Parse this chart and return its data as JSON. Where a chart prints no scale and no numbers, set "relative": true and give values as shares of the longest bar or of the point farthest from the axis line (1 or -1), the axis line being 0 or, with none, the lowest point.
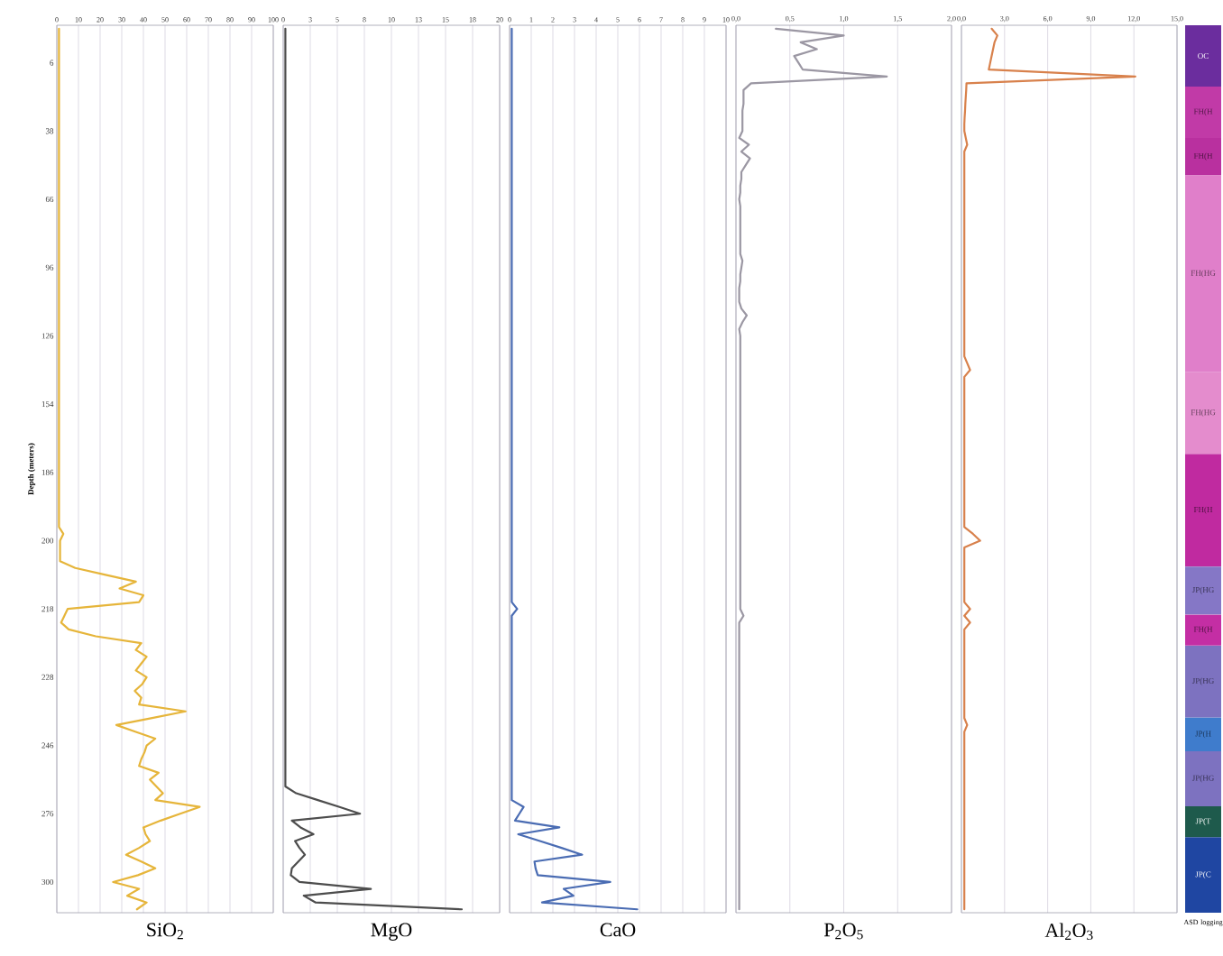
{
  "chart_data": [
    {
      "type": "line",
      "orientation": "horizontal",
      "xlabel": "SiO$_{2}$",
      "ylabel": "Depth (meters)",
      "xlim": [
        0,
        100
      ],
      "xticks": [
        0,
        10,
        20,
        30,
        40,
        50,
        60,
        70,
        80,
        90,
        100
      ],
      "categories": [
        null,
        null,
        null,
        null,
        null,
        "6",
        null,
        null,
        null,
        null,
        null,
        null,
        null,
        null,
        null,
        "38",
        null,
        null,
        null,
        null,
        null,
        null,
        null,
        null,
        null,
        "66",
        null,
        null,
        null,
        null,
        null,
        null,
        null,
        null,
        null,
        "96",
        null,
        null,
        null,
        null,
        null,
        null,
        null,
        null,
        null,
        "126",
        null,
        null,
        null,
        null,
        null,
        null,
        null,
        null,
        null,
        "154",
        null,
        null,
        null,
        null,
        null,
        null,
        null,
        null,
        null,
        "186",
        null,
        null,
        null,
        null,
        null,
        null,
        null,
        null,
        null,
        "200",
        null,
        null,
        null,
        null,
        null,
        null,
        null,
        null,
        null,
        "218",
        null,
        null,
        null,
        null,
        null,
        null,
        null,
        null,
        null,
        "228",
        null,
        null,
        null,
        null,
        null,
        null,
        null,
        null,
        null,
        "246",
        null,
        null,
        null,
        null,
        null,
        null,
        null,
        null,
        null,
        "276",
        null,
        null,
        null,
        null,
        null,
        null,
        null,
        null,
        null,
        "300",
        null,
        null,
        null,
        null
      ],
      "grid": "x",
      "series": [
        {
          "color": "#e6b53a",
          "values": [
            1,
            1,
            1,
            1,
            1,
            1,
            1,
            1,
            1,
            1,
            1,
            1,
            1,
            1,
            1,
            1,
            1,
            1,
            1,
            1,
            1,
            1,
            1,
            1,
            1,
            1,
            1,
            1,
            1,
            1,
            1,
            1,
            1,
            1,
            1,
            1,
            1,
            1,
            1,
            1,
            1,
            1,
            1,
            1,
            1,
            1,
            1,
            1,
            1,
            1,
            1,
            1,
            1,
            1,
            1,
            1,
            1,
            1,
            1,
            1,
            1,
            1,
            1,
            1,
            1,
            1,
            1,
            1,
            1,
            1,
            1,
            1,
            1,
            1,
            3,
            1.5,
            1.5,
            1.5,
            1.5,
            8.5,
            22.5,
            36.5,
            29,
            40,
            38,
            5,
            3.5,
            2,
            5.5,
            18,
            39,
            36.5,
            41.5,
            39,
            36.5,
            41.5,
            39.5,
            36,
            39,
            38,
            59.5,
            43.5,
            27.5,
            36.5,
            45.5,
            41.5,
            40.5,
            39,
            38,
            47,
            43,
            46,
            49,
            45.5,
            66,
            57,
            48,
            40,
            41,
            43,
            38,
            32,
            39,
            45.5,
            37.5,
            26,
            38,
            32.5,
            41.5,
            37
          ]
        }
      ]
    },
    {
      "type": "line",
      "orientation": "horizontal",
      "xlabel": "MgO",
      "xlim": [
        0,
        20
      ],
      "xticks": [
        0,
        {
          "value": 2.5,
          "label": "3"
        },
        5,
        {
          "value": 7.5,
          "label": "8"
        },
        10,
        {
          "value": 12.5,
          "label": "13"
        },
        15,
        {
          "value": 17.5,
          "label": "18"
        },
        20
      ],
      "tick_labels": "x",
      "grid": "x",
      "categories": [
        null,
        null,
        null,
        null,
        null,
        "6",
        null,
        null,
        null,
        null,
        null,
        null,
        null,
        null,
        null,
        "38",
        null,
        null,
        null,
        null,
        null,
        null,
        null,
        null,
        null,
        "66",
        null,
        null,
        null,
        null,
        null,
        null,
        null,
        null,
        null,
        "96",
        null,
        null,
        null,
        null,
        null,
        null,
        null,
        null,
        null,
        "126",
        null,
        null,
        null,
        null,
        null,
        null,
        null,
        null,
        null,
        "154",
        null,
        null,
        null,
        null,
        null,
        null,
        null,
        null,
        null,
        "186",
        null,
        null,
        null,
        null,
        null,
        null,
        null,
        null,
        null,
        "200",
        null,
        null,
        null,
        null,
        null,
        null,
        null,
        null,
        null,
        "218",
        null,
        null,
        null,
        null,
        null,
        null,
        null,
        null,
        null,
        "228",
        null,
        null,
        null,
        null,
        null,
        null,
        null,
        null,
        null,
        "246",
        null,
        null,
        null,
        null,
        null,
        null,
        null,
        null,
        null,
        "276",
        null,
        null,
        null,
        null,
        null,
        null,
        null,
        null,
        null,
        "300",
        null,
        null,
        null,
        null
      ],
      "series": [
        {
          "color": "#4d4d4d",
          "values": [
            0.2,
            0.2,
            0.2,
            0.2,
            0.2,
            0.2,
            0.2,
            0.2,
            0.2,
            0.2,
            0.2,
            0.2,
            0.2,
            0.2,
            0.2,
            0.2,
            0.2,
            0.2,
            0.2,
            0.2,
            0.2,
            0.2,
            0.2,
            0.2,
            0.2,
            0.2,
            0.2,
            0.2,
            0.2,
            0.2,
            0.2,
            0.2,
            0.2,
            0.2,
            0.2,
            0.2,
            0.2,
            0.2,
            0.2,
            0.2,
            0.2,
            0.2,
            0.2,
            0.2,
            0.2,
            0.2,
            0.2,
            0.2,
            0.2,
            0.2,
            0.2,
            0.2,
            0.2,
            0.2,
            0.2,
            0.2,
            0.2,
            0.2,
            0.2,
            0.2,
            0.2,
            0.2,
            0.2,
            0.2,
            0.2,
            0.2,
            0.2,
            0.2,
            0.2,
            0.2,
            0.2,
            0.2,
            0.2,
            0.2,
            0.2,
            0.2,
            0.2,
            0.2,
            0.2,
            0.2,
            0.2,
            0.2,
            0.2,
            0.2,
            0.2,
            0.2,
            0.2,
            0.2,
            0.2,
            0.2,
            0.2,
            0.2,
            0.2,
            0.2,
            0.2,
            0.2,
            0.2,
            0.2,
            0.2,
            0.2,
            0.2,
            0.2,
            0.2,
            0.2,
            0.2,
            0.2,
            0.2,
            0.2,
            0.2,
            0.2,
            0.2,
            0.2,
            1.2,
            3.2,
            5.2,
            7.1,
            0.8,
            1.6,
            2.8,
            1.1,
            1.5,
            2,
            1.4,
            0.8,
            0.7,
            1.5,
            8.1,
            1.9,
            3,
            16.5
          ]
        }
      ]
    },
    {
      "type": "line",
      "orientation": "horizontal",
      "xlabel": "CaO",
      "xlim": [
        0,
        10
      ],
      "xticks": [
        0,
        1,
        2,
        3,
        4,
        5,
        6,
        7,
        8,
        9,
        10
      ],
      "tick_labels": "x",
      "grid": "x",
      "categories": [
        null,
        null,
        null,
        null,
        null,
        "6",
        null,
        null,
        null,
        null,
        null,
        null,
        null,
        null,
        null,
        "38",
        null,
        null,
        null,
        null,
        null,
        null,
        null,
        null,
        null,
        "66",
        null,
        null,
        null,
        null,
        null,
        null,
        null,
        null,
        null,
        "96",
        null,
        null,
        null,
        null,
        null,
        null,
        null,
        null,
        null,
        "126",
        null,
        null,
        null,
        null,
        null,
        null,
        null,
        null,
        null,
        "154",
        null,
        null,
        null,
        null,
        null,
        null,
        null,
        null,
        null,
        "186",
        null,
        null,
        null,
        null,
        null,
        null,
        null,
        null,
        null,
        "200",
        null,
        null,
        null,
        null,
        null,
        null,
        null,
        null,
        null,
        "218",
        null,
        null,
        null,
        null,
        null,
        null,
        null,
        null,
        null,
        "228",
        null,
        null,
        null,
        null,
        null,
        null,
        null,
        null,
        null,
        "246",
        null,
        null,
        null,
        null,
        null,
        null,
        null,
        null,
        null,
        "276",
        null,
        null,
        null,
        null,
        null,
        null,
        null,
        null,
        null,
        "300",
        null,
        null,
        null,
        null
      ],
      "series": [
        {
          "color": "#4a6cb3",
          "values": [
            0.1,
            0.1,
            0.1,
            0.1,
            0.1,
            0.1,
            0.1,
            0.1,
            0.1,
            0.1,
            0.1,
            0.1,
            0.1,
            0.1,
            0.1,
            0.1,
            0.1,
            0.1,
            0.1,
            0.1,
            0.1,
            0.1,
            0.1,
            0.1,
            0.1,
            0.1,
            0.1,
            0.1,
            0.1,
            0.1,
            0.1,
            0.1,
            0.1,
            0.1,
            0.1,
            0.1,
            0.1,
            0.1,
            0.1,
            0.1,
            0.1,
            0.1,
            0.1,
            0.1,
            0.1,
            0.1,
            0.1,
            0.1,
            0.1,
            0.1,
            0.1,
            0.1,
            0.1,
            0.1,
            0.1,
            0.1,
            0.1,
            0.1,
            0.1,
            0.1,
            0.1,
            0.1,
            0.1,
            0.1,
            0.1,
            0.1,
            0.1,
            0.1,
            0.1,
            0.1,
            0.1,
            0.1,
            0.1,
            0.1,
            0.1,
            0.1,
            0.1,
            0.1,
            0.1,
            0.1,
            0.1,
            0.1,
            0.1,
            0.1,
            0.1,
            0.35,
            0.1,
            0.1,
            0.1,
            0.1,
            0.1,
            0.1,
            0.1,
            0.1,
            0.1,
            0.1,
            0.1,
            0.1,
            0.1,
            0.1,
            0.1,
            0.1,
            0.1,
            0.1,
            0.1,
            0.1,
            0.1,
            0.1,
            0.1,
            0.1,
            0.1,
            0.1,
            0.1,
            0.1,
            0.65,
            0.45,
            0.25,
            2.3,
            0.4,
            1.4,
            2.4,
            3.35,
            1.15,
            1.2,
            1.3,
            4.65,
            2.5,
            2.95,
            1.5,
            5.9
          ]
        }
      ]
    },
    {
      "type": "line",
      "orientation": "horizontal",
      "xlabel": "P$_{2}$O$_{5}$",
      "xlim": [
        0,
        2
      ],
      "xticks": [
        {
          "value": 0,
          "label": "0,0"
        },
        {
          "value": 0.5,
          "label": "0,5"
        },
        {
          "value": 1,
          "label": "1,0"
        },
        {
          "value": 1.5,
          "label": "1,5"
        },
        {
          "value": 2,
          "label": "2,0"
        }
      ],
      "tick_labels": "x",
      "grid": "x",
      "categories": [
        null,
        null,
        null,
        null,
        null,
        "6",
        null,
        null,
        null,
        null,
        null,
        null,
        null,
        null,
        null,
        "38",
        null,
        null,
        null,
        null,
        null,
        null,
        null,
        null,
        null,
        "66",
        null,
        null,
        null,
        null,
        null,
        null,
        null,
        null,
        null,
        "96",
        null,
        null,
        null,
        null,
        null,
        null,
        null,
        null,
        null,
        "126",
        null,
        null,
        null,
        null,
        null,
        null,
        null,
        null,
        null,
        "154",
        null,
        null,
        null,
        null,
        null,
        null,
        null,
        null,
        null,
        "186",
        null,
        null,
        null,
        null,
        null,
        null,
        null,
        null,
        null,
        "200",
        null,
        null,
        null,
        null,
        null,
        null,
        null,
        null,
        null,
        "218",
        null,
        null,
        null,
        null,
        null,
        null,
        null,
        null,
        null,
        "228",
        null,
        null,
        null,
        null,
        null,
        null,
        null,
        null,
        null,
        "246",
        null,
        null,
        null,
        null,
        null,
        null,
        null,
        null,
        null,
        "276",
        null,
        null,
        null,
        null,
        null,
        null,
        null,
        null,
        null,
        "300",
        null,
        null,
        null,
        null
      ],
      "series": [
        {
          "color": "#9b97a3",
          "values": [
            0.37,
            1.0,
            0.6,
            0.75,
            0.54,
            0.58,
            0.62,
            1.4,
            0.14,
            0.07,
            0.07,
            0.07,
            0.06,
            0.06,
            0.06,
            0.06,
            0.03,
            0.12,
            0.05,
            0.13,
            0.09,
            0.05,
            0.05,
            0.04,
            0.04,
            0.03,
            0.04,
            0.04,
            0.04,
            0.04,
            0.04,
            0.04,
            0.04,
            0.04,
            0.06,
            0.05,
            0.04,
            0.04,
            0.03,
            0.03,
            0.03,
            0.05,
            0.1,
            0.06,
            0.03,
            0.04,
            0.04,
            0.04,
            0.04,
            0.04,
            0.04,
            0.04,
            0.04,
            0.04,
            0.04,
            0.04,
            0.04,
            0.04,
            0.04,
            0.04,
            0.04,
            0.04,
            0.04,
            0.04,
            0.04,
            0.04,
            0.04,
            0.04,
            0.04,
            0.04,
            0.04,
            0.04,
            0.04,
            0.04,
            0.04,
            0.04,
            0.04,
            0.04,
            0.04,
            0.04,
            0.04,
            0.04,
            0.04,
            0.04,
            0.04,
            0.04,
            0.07,
            0.03,
            0.03,
            0.03,
            0.03,
            0.03,
            0.03,
            0.03,
            0.03,
            0.03,
            0.03,
            0.03,
            0.03,
            0.03,
            0.03,
            0.03,
            0.03,
            0.03,
            0.03,
            0.03,
            0.03,
            0.03,
            0.03,
            0.03,
            0.03,
            0.03,
            0.03,
            0.03,
            0.03,
            0.03,
            0.03,
            0.03,
            0.03,
            0.03,
            0.03,
            0.03,
            0.03,
            0.03,
            0.03,
            0.03,
            0.03,
            0.03,
            0.03,
            0.03
          ]
        }
      ]
    },
    {
      "type": "line",
      "orientation": "horizontal",
      "xlabel": "Al$_{2}$O$_{3}$",
      "xlim": [
        0,
        15
      ],
      "xticks": [
        {
          "value": 0,
          "label": "0,0"
        },
        {
          "value": 3,
          "label": "3,0"
        },
        {
          "value": 6,
          "label": "6,0"
        },
        {
          "value": 9,
          "label": "9,0"
        },
        {
          "value": 12,
          "label": "12,0"
        },
        {
          "value": 15,
          "label": "15,0"
        }
      ],
      "tick_labels": "x",
      "grid": "x",
      "categories": [
        null,
        null,
        null,
        null,
        null,
        "6",
        null,
        null,
        null,
        null,
        null,
        null,
        null,
        null,
        null,
        "38",
        null,
        null,
        null,
        null,
        null,
        null,
        null,
        null,
        null,
        "66",
        null,
        null,
        null,
        null,
        null,
        null,
        null,
        null,
        null,
        "96",
        null,
        null,
        null,
        null,
        null,
        null,
        null,
        null,
        null,
        "126",
        null,
        null,
        null,
        null,
        null,
        null,
        null,
        null,
        null,
        "154",
        null,
        null,
        null,
        null,
        null,
        null,
        null,
        null,
        null,
        "186",
        null,
        null,
        null,
        null,
        null,
        null,
        null,
        null,
        null,
        "200",
        null,
        null,
        null,
        null,
        null,
        null,
        null,
        null,
        null,
        "218",
        null,
        null,
        null,
        null,
        null,
        null,
        null,
        null,
        null,
        "228",
        null,
        null,
        null,
        null,
        null,
        null,
        null,
        null,
        null,
        "246",
        null,
        null,
        null,
        null,
        null,
        null,
        null,
        null,
        null,
        "276",
        null,
        null,
        null,
        null,
        null,
        null,
        null,
        null,
        null,
        "300",
        null,
        null,
        null,
        null
      ],
      "series": [
        {
          "color": "#d8814c",
          "values": [
            2.1,
            2.5,
            2.3,
            2.2,
            2.1,
            2.0,
            1.9,
            12.1,
            0.35,
            0.33,
            0.3,
            0.27,
            0.25,
            0.22,
            0.2,
            0.2,
            0.3,
            0.4,
            0.2,
            0.2,
            0.2,
            0.2,
            0.2,
            0.2,
            0.2,
            0.2,
            0.2,
            0.2,
            0.2,
            0.2,
            0.2,
            0.2,
            0.2,
            0.2,
            0.2,
            0.2,
            0.2,
            0.2,
            0.2,
            0.2,
            0.2,
            0.2,
            0.2,
            0.2,
            0.2,
            0.2,
            0.2,
            0.2,
            0.2,
            0.4,
            0.6,
            0.2,
            0.2,
            0.2,
            0.2,
            0.2,
            0.2,
            0.2,
            0.2,
            0.2,
            0.2,
            0.2,
            0.2,
            0.2,
            0.2,
            0.2,
            0.2,
            0.2,
            0.2,
            0.2,
            0.2,
            0.2,
            0.2,
            0.2,
            0.8,
            1.3,
            0.2,
            0.2,
            0.2,
            0.2,
            0.2,
            0.2,
            0.2,
            0.2,
            0.2,
            0.6,
            0.2,
            0.6,
            0.2,
            0.2,
            0.2,
            0.2,
            0.2,
            0.2,
            0.2,
            0.2,
            0.2,
            0.2,
            0.2,
            0.2,
            0.2,
            0.2,
            0.4,
            0.2,
            0.2,
            0.2,
            0.2,
            0.2,
            0.2,
            0.2,
            0.2,
            0.2,
            0.2,
            0.2,
            0.2,
            0.2,
            0.2,
            0.2,
            0.2,
            0.2,
            0.2,
            0.2,
            0.2,
            0.2,
            0.2,
            0.2,
            0.2,
            0.2,
            0.2,
            0.2
          ]
        }
      ]
    },
    {
      "type": "bar",
      "xlabel": "ASD logging",
      "categories": [
        null
      ],
      "stacked": true,
      "relative": true,
      "tick_labels": false,
      "series": [
        {
          "name": "JP(C",
          "color": "#1f46a2",
          "values": [
            0.085
          ]
        },
        {
          "name": "JP(T",
          "color": "#1e5a4c",
          "values": [
            0.035
          ]
        },
        {
          "name": "JP(HG",
          "color": "#7d72c0",
          "values": [
            0.062
          ]
        },
        {
          "name": "JP(H",
          "color": "#3f7ccc",
          "values": [
            0.038
          ]
        },
        {
          "name": "JP(HG",
          "color": "#7d72c0",
          "values": [
            0.081
          ]
        },
        {
          "name": "FH(H",
          "color": "#c42ea4",
          "values": [
            0.035
          ]
        },
        {
          "name": "JP(HG",
          "color": "#8577c6",
          "values": [
            0.054
          ]
        },
        {
          "name": "FH(H",
          "color": "#c02aa0",
          "values": [
            0.127
          ]
        },
        {
          "name": "FH(HG",
          "color": "#e48ccd",
          "values": [
            0.092
          ]
        },
        {
          "name": "FH(HG",
          "color": "#e07fca",
          "values": [
            0.222
          ]
        },
        {
          "name": "FH(H",
          "color": "#b9309f",
          "values": [
            0.042
          ]
        },
        {
          "name": "FH(H",
          "color": "#c13aa7",
          "values": [
            0.058
          ]
        },
        {
          "name": "OC",
          "color": "#6b2d9e",
          "values": [
            0.069
          ]
        }
      ]
    }
  ]
}
